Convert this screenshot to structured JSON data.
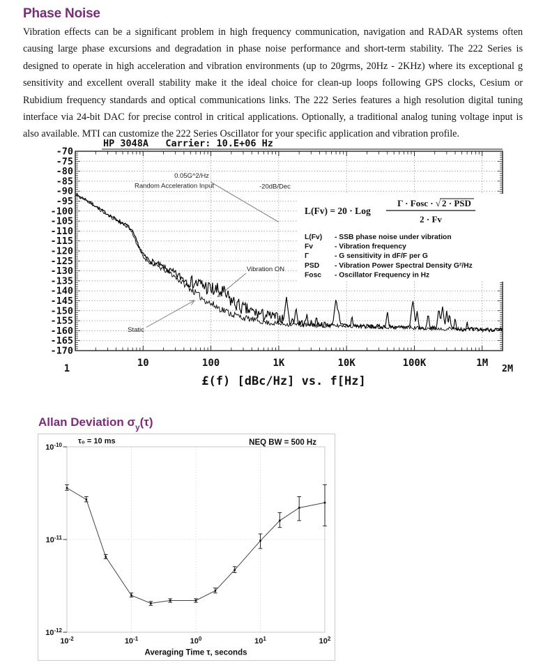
{
  "phase_noise_section": {
    "title": "Phase Noise",
    "paragraph": "Vibration effects can be a significant problem in high frequency communication, navigation and RADAR systems often causing large phase excursions and degradation in phase noise performance and short-term stability.  The 222 Series is designed to operate in high acceleration and vibration environments (up to 20grms, 20Hz - 2KHz) where its exceptional g sensitivity and excellent overall stability make it the ideal choice for clean-up loops following GPS clocks, Cesium or Rubidium frequency standards and optical communications links.  The 222 Series features a high resolution digital tuning interface via 24-bit DAC for precise control in critical applications. Optionally, a traditional analog tuning voltage input is also available. MTI can customize the 222 Series Oscillator for your specific application and vibration profile."
  },
  "allan_section": {
    "title_main": "Allan Deviation σ",
    "title_sub": "y",
    "title_tail": "(τ)"
  },
  "colors": {
    "heading_purple": "#792d78",
    "chart_ink": "#111111",
    "scan_gray": "#777777"
  },
  "chart_data": [
    {
      "name": "phase-noise-plot",
      "type": "line",
      "title": "HP 3048A   Carrier: 10.E+06 Hz",
      "caption": "£(f) [dBc/Hz] vs. f[Hz]",
      "x_scale": "log",
      "xlim": [
        1,
        2000000
      ],
      "ylim": [
        -170,
        -70
      ],
      "ytick_step": 5,
      "xtick_labels": [
        "1",
        "10",
        "100",
        "1K",
        "10K",
        "100K",
        "1M",
        "2M"
      ],
      "grid": "dotted",
      "series": [
        {
          "name": "Static",
          "seed": 11,
          "width": 0.9,
          "points": [
            [
              1,
              -92
            ],
            [
              1.5,
              -95
            ],
            [
              2,
              -98
            ],
            [
              3,
              -102
            ],
            [
              4,
              -104.5
            ],
            [
              5,
              -106.5
            ],
            [
              6,
              -108
            ],
            [
              7,
              -111
            ],
            [
              8,
              -116
            ],
            [
              10,
              -123
            ],
            [
              13,
              -126
            ],
            [
              18,
              -128.5
            ],
            [
              25,
              -131
            ],
            [
              35,
              -135
            ],
            [
              50,
              -139
            ],
            [
              70,
              -143
            ],
            [
              100,
              -146.5
            ],
            [
              140,
              -149
            ],
            [
              200,
              -151.5
            ],
            [
              300,
              -153.5
            ],
            [
              500,
              -155
            ],
            [
              700,
              -156
            ],
            [
              1000,
              -156.5
            ],
            [
              2000,
              -157
            ],
            [
              5000,
              -157.5
            ],
            [
              10000,
              -157.5
            ],
            [
              30000,
              -158
            ],
            [
              100000,
              -158.5
            ],
            [
              300000,
              -159
            ],
            [
              1000000,
              -159.5
            ],
            [
              2000000,
              -159.5
            ]
          ],
          "noise": [
            [
              1,
              0.6
            ],
            [
              5,
              0.8
            ],
            [
              10,
              1.0
            ],
            [
              50,
              1.5
            ],
            [
              100,
              2.0
            ],
            [
              300,
              1.5
            ],
            [
              1000,
              1.2
            ],
            [
              10000,
              1.0
            ],
            [
              2000000,
              0.9
            ]
          ]
        },
        {
          "name": "Vibration ON",
          "seed": 7,
          "width": 1.15,
          "has_spikes": true,
          "points": [
            [
              1,
              -91.5
            ],
            [
              1.5,
              -94.5
            ],
            [
              2,
              -97.5
            ],
            [
              3,
              -101.5
            ],
            [
              4,
              -104
            ],
            [
              5,
              -106
            ],
            [
              6,
              -107.5
            ],
            [
              7,
              -110.5
            ],
            [
              8,
              -115
            ],
            [
              10,
              -122
            ],
            [
              13,
              -125
            ],
            [
              18,
              -127.5
            ],
            [
              25,
              -130
            ],
            [
              35,
              -133
            ],
            [
              50,
              -135.5
            ],
            [
              65,
              -136.5
            ],
            [
              80,
              -137.5
            ],
            [
              100,
              -139.5
            ],
            [
              120,
              -140
            ],
            [
              150,
              -141
            ],
            [
              200,
              -145
            ],
            [
              300,
              -149
            ],
            [
              500,
              -151.5
            ],
            [
              700,
              -152.5
            ],
            [
              1000,
              -153.5
            ],
            [
              1500,
              -155
            ],
            [
              2000,
              -156
            ],
            [
              5000,
              -157
            ],
            [
              10000,
              -157.5
            ],
            [
              30000,
              -158
            ],
            [
              100000,
              -158.5
            ],
            [
              300000,
              -159
            ],
            [
              1000000,
              -159.5
            ],
            [
              2000000,
              -159.5
            ]
          ],
          "noise": [
            [
              1,
              0.6
            ],
            [
              5,
              0.8
            ],
            [
              10,
              1.2
            ],
            [
              30,
              2.0
            ],
            [
              60,
              3.5
            ],
            [
              100,
              4.5
            ],
            [
              200,
              4.0
            ],
            [
              500,
              3.0
            ],
            [
              1000,
              2.5
            ],
            [
              3000,
              1.5
            ],
            [
              10000,
              1.2
            ],
            [
              2000000,
              1.0
            ]
          ]
        }
      ],
      "spikes": [
        [
          1300,
          -143
        ],
        [
          1800,
          -148
        ],
        [
          2600,
          -151
        ],
        [
          3600,
          -152
        ],
        [
          7000,
          -143.5
        ],
        [
          7600,
          -149
        ],
        [
          12000,
          -152
        ],
        [
          40000,
          -150
        ],
        [
          95000,
          -144.5
        ],
        [
          110000,
          -150
        ],
        [
          160000,
          -151
        ],
        [
          230000,
          -148.5
        ],
        [
          260000,
          -147.5
        ],
        [
          300000,
          -150
        ],
        [
          330000,
          -151
        ],
        [
          400000,
          -153
        ],
        [
          600000,
          -155
        ]
      ],
      "theory_line": {
        "from": [
          100,
          -85.5
        ],
        "to": [
          1000,
          -105.5
        ]
      },
      "annotations": {
        "psd": "0.05G^2/Hz",
        "accel": "Random Acceleration Input",
        "slope": "-20dB/Dec",
        "vibration_on": "Vibration ON",
        "static": "Static"
      },
      "formula": {
        "lhs": "L(Fv) = 20 · Log",
        "numerator_prefix": "Γ · Fosc · √",
        "numerator_radicand": "2 · PSD",
        "denominator": "2 · Fv",
        "legend": [
          {
            "term": "L(Fv)",
            "desc": "SSB phase noise under vibration"
          },
          {
            "term": "Fv",
            "desc": "Vibration frequency"
          },
          {
            "term": "Γ",
            "desc": "G sensitivity in dF/F per G"
          },
          {
            "term": "PSD",
            "desc": "Vibration Power Spectral Density G²/Hz"
          },
          {
            "term": "Fosc",
            "desc": "Oscillator Frequency in Hz"
          }
        ]
      }
    },
    {
      "name": "allan-deviation-plot",
      "type": "line",
      "x_scale": "log",
      "y_scale": "log",
      "xlim": [
        0.01,
        100
      ],
      "ylim": [
        1e-12,
        1e-10
      ],
      "xlabel": "Averaging Time τ, seconds",
      "top_left_label": "τ₀ = 10 ms",
      "top_right_label": "NEQ BW = 500 Hz",
      "xticks": [
        0.01,
        0.1,
        1,
        10,
        100
      ],
      "xtick_labels": [
        [
          "10",
          "-2"
        ],
        [
          "10",
          "-1"
        ],
        [
          "10",
          "0"
        ],
        [
          "10",
          "1"
        ],
        [
          "10",
          "2"
        ]
      ],
      "yticks": [
        1e-10,
        1e-11,
        1e-12
      ],
      "ytick_labels": [
        [
          "10",
          "-10"
        ],
        [
          "10",
          "-11"
        ],
        [
          "10",
          "-12"
        ]
      ],
      "points": [
        {
          "tau": 0.01,
          "sigma": 3.6e-11,
          "lo": 3.4e-11,
          "hi": 3.9e-11
        },
        {
          "tau": 0.02,
          "sigma": 2.7e-11,
          "lo": 2.55e-11,
          "hi": 2.9e-11
        },
        {
          "tau": 0.04,
          "sigma": 6.5e-12,
          "lo": 6.2e-12,
          "hi": 6.9e-12
        },
        {
          "tau": 0.1,
          "sigma": 2.5e-12,
          "lo": 2.4e-12,
          "hi": 2.65e-12
        },
        {
          "tau": 0.2,
          "sigma": 2.05e-12,
          "lo": 1.95e-12,
          "hi": 2.15e-12
        },
        {
          "tau": 0.4,
          "sigma": 2.2e-12,
          "lo": 2.1e-12,
          "hi": 2.3e-12
        },
        {
          "tau": 1,
          "sigma": 2.2e-12,
          "lo": 2.1e-12,
          "hi": 2.3e-12
        },
        {
          "tau": 2,
          "sigma": 2.8e-12,
          "lo": 2.65e-12,
          "hi": 3e-12
        },
        {
          "tau": 4,
          "sigma": 4.7e-12,
          "lo": 4.4e-12,
          "hi": 5.1e-12
        },
        {
          "tau": 10,
          "sigma": 9.7e-12,
          "lo": 8e-12,
          "hi": 1.15e-11
        },
        {
          "tau": 20,
          "sigma": 1.6e-11,
          "lo": 1.35e-11,
          "hi": 1.95e-11
        },
        {
          "tau": 40,
          "sigma": 2.2e-11,
          "lo": 1.6e-11,
          "hi": 2.9e-11
        },
        {
          "tau": 100,
          "sigma": 2.5e-11,
          "lo": 1.4e-11,
          "hi": 3.9e-11
        }
      ]
    }
  ]
}
